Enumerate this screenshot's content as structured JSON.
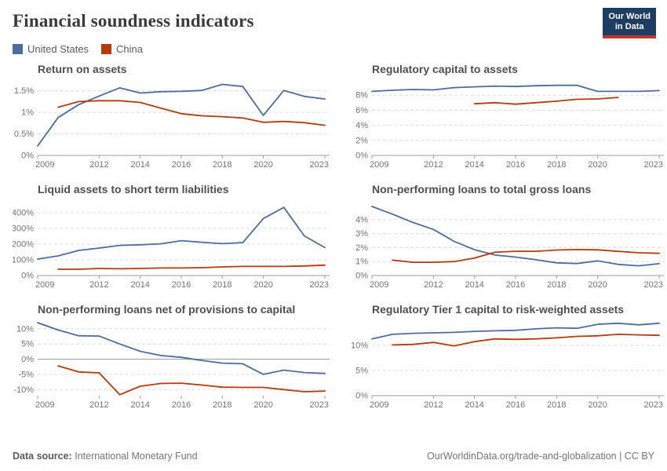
{
  "page": {
    "title": "Financial soundness indicators",
    "logo": {
      "line1": "Our World",
      "line2": "in Data"
    },
    "footer": {
      "source_label": "Data source:",
      "source_value": "International Monetary Fund",
      "rights": "OurWorldinData.org/trade-and-globalization | CC BY"
    }
  },
  "colors": {
    "united_states": "#4C6D9F",
    "china": "#B73A0D",
    "gridline": "#dcdcdc",
    "axis": "#9e9e9e",
    "tick_text": "#737373"
  },
  "legend": [
    {
      "label": "United States",
      "color": "#4C6D9F"
    },
    {
      "label": "China",
      "color": "#B73A0D"
    }
  ],
  "chart_data": [
    {
      "type": "line",
      "title": "Return on assets",
      "unit": "%",
      "xlim": [
        2009,
        2023
      ],
      "xticks": [
        2009,
        2012,
        2014,
        2016,
        2018,
        2020,
        2023
      ],
      "ylim": [
        0,
        1.75
      ],
      "yticks": [
        0,
        0.5,
        1,
        1.5
      ],
      "ytick_labels": [
        "0%",
        "0.5%",
        "1%",
        "1.5%"
      ],
      "series": [
        {
          "name": "United States",
          "color": "#4C6D9F",
          "points": [
            [
              2009,
              0.22
            ],
            [
              2010,
              0.88
            ],
            [
              2011,
              1.18
            ],
            [
              2012,
              1.38
            ],
            [
              2013,
              1.57
            ],
            [
              2014,
              1.45
            ],
            [
              2015,
              1.48
            ],
            [
              2016,
              1.49
            ],
            [
              2017,
              1.51
            ],
            [
              2018,
              1.65
            ],
            [
              2019,
              1.6
            ],
            [
              2020,
              0.93
            ],
            [
              2021,
              1.51
            ],
            [
              2022,
              1.37
            ],
            [
              2023,
              1.31
            ]
          ]
        },
        {
          "name": "China",
          "color": "#B73A0D",
          "points": [
            [
              2010,
              1.12
            ],
            [
              2011,
              1.25
            ],
            [
              2012,
              1.27
            ],
            [
              2013,
              1.27
            ],
            [
              2014,
              1.23
            ],
            [
              2015,
              1.1
            ],
            [
              2016,
              0.97
            ],
            [
              2017,
              0.92
            ],
            [
              2018,
              0.9
            ],
            [
              2019,
              0.87
            ],
            [
              2020,
              0.77
            ],
            [
              2021,
              0.79
            ],
            [
              2022,
              0.76
            ],
            [
              2023,
              0.7
            ]
          ]
        }
      ]
    },
    {
      "type": "line",
      "title": "Regulatory capital to assets",
      "unit": "%",
      "xlim": [
        2009,
        2023
      ],
      "xticks": [
        2009,
        2012,
        2014,
        2016,
        2018,
        2020,
        2023
      ],
      "ylim": [
        0,
        10
      ],
      "yticks": [
        0,
        2,
        4,
        6,
        8
      ],
      "ytick_labels": [
        "0%",
        "2%",
        "4%",
        "6%",
        "8%"
      ],
      "series": [
        {
          "name": "United States",
          "color": "#4C6D9F",
          "points": [
            [
              2009,
              8.5
            ],
            [
              2010,
              8.65
            ],
            [
              2011,
              8.75
            ],
            [
              2012,
              8.7
            ],
            [
              2013,
              9.0
            ],
            [
              2014,
              9.1
            ],
            [
              2015,
              9.2
            ],
            [
              2016,
              9.15
            ],
            [
              2017,
              9.25
            ],
            [
              2018,
              9.3
            ],
            [
              2019,
              9.3
            ],
            [
              2020,
              8.5
            ],
            [
              2021,
              8.5
            ],
            [
              2022,
              8.5
            ],
            [
              2023,
              8.6
            ]
          ]
        },
        {
          "name": "China",
          "color": "#B73A0D",
          "points": [
            [
              2014,
              6.85
            ],
            [
              2015,
              7.0
            ],
            [
              2016,
              6.8
            ],
            [
              2017,
              7.0
            ],
            [
              2018,
              7.2
            ],
            [
              2019,
              7.45
            ],
            [
              2020,
              7.5
            ],
            [
              2021,
              7.7
            ]
          ]
        }
      ]
    },
    {
      "type": "line",
      "title": "Liquid assets to short term liabilities",
      "unit": "%",
      "xlim": [
        2009,
        2023
      ],
      "xticks": [
        2009,
        2012,
        2014,
        2016,
        2018,
        2020,
        2023
      ],
      "ylim": [
        0,
        480
      ],
      "yticks": [
        0,
        100,
        200,
        300,
        400
      ],
      "ytick_labels": [
        "0%",
        "100%",
        "200%",
        "300%",
        "400%"
      ],
      "series": [
        {
          "name": "United States",
          "color": "#4C6D9F",
          "points": [
            [
              2009,
              105
            ],
            [
              2010,
              125
            ],
            [
              2011,
              160
            ],
            [
              2012,
              175
            ],
            [
              2013,
              192
            ],
            [
              2014,
              196
            ],
            [
              2015,
              202
            ],
            [
              2016,
              222
            ],
            [
              2017,
              212
            ],
            [
              2018,
              203
            ],
            [
              2019,
              210
            ],
            [
              2020,
              363
            ],
            [
              2021,
              434
            ],
            [
              2022,
              252
            ],
            [
              2023,
              178
            ]
          ]
        },
        {
          "name": "China",
          "color": "#B73A0D",
          "points": [
            [
              2010,
              40
            ],
            [
              2011,
              40
            ],
            [
              2012,
              45
            ],
            [
              2013,
              43
            ],
            [
              2014,
              45
            ],
            [
              2015,
              48
            ],
            [
              2016,
              48
            ],
            [
              2017,
              50
            ],
            [
              2018,
              55
            ],
            [
              2019,
              58
            ],
            [
              2020,
              58
            ],
            [
              2021,
              58
            ],
            [
              2022,
              61
            ],
            [
              2023,
              66
            ]
          ]
        }
      ]
    },
    {
      "type": "line",
      "title": "Non-performing loans to total gross loans",
      "unit": "%",
      "xlim": [
        2009,
        2023
      ],
      "xticks": [
        2009,
        2012,
        2014,
        2016,
        2018,
        2020,
        2023
      ],
      "ylim": [
        0,
        5.4
      ],
      "yticks": [
        0,
        1,
        2,
        3,
        4
      ],
      "ytick_labels": [
        "0%",
        "1%",
        "2%",
        "3%",
        "4%"
      ],
      "series": [
        {
          "name": "United States",
          "color": "#4C6D9F",
          "points": [
            [
              2009,
              4.95
            ],
            [
              2010,
              4.4
            ],
            [
              2011,
              3.8
            ],
            [
              2012,
              3.3
            ],
            [
              2013,
              2.45
            ],
            [
              2014,
              1.85
            ],
            [
              2015,
              1.47
            ],
            [
              2016,
              1.32
            ],
            [
              2017,
              1.13
            ],
            [
              2018,
              0.91
            ],
            [
              2019,
              0.86
            ],
            [
              2020,
              1.05
            ],
            [
              2021,
              0.8
            ],
            [
              2022,
              0.7
            ],
            [
              2023,
              0.85
            ]
          ]
        },
        {
          "name": "China",
          "color": "#B73A0D",
          "points": [
            [
              2010,
              1.1
            ],
            [
              2011,
              0.95
            ],
            [
              2012,
              0.95
            ],
            [
              2013,
              1.0
            ],
            [
              2014,
              1.25
            ],
            [
              2015,
              1.67
            ],
            [
              2016,
              1.74
            ],
            [
              2017,
              1.74
            ],
            [
              2018,
              1.83
            ],
            [
              2019,
              1.86
            ],
            [
              2020,
              1.84
            ],
            [
              2021,
              1.73
            ],
            [
              2022,
              1.63
            ],
            [
              2023,
              1.59
            ]
          ]
        }
      ]
    },
    {
      "type": "line",
      "title": "Non-performing loans net of provisions to capital",
      "unit": "%",
      "xlim": [
        2009,
        2023
      ],
      "xticks": [
        2009,
        2012,
        2014,
        2016,
        2018,
        2020,
        2023
      ],
      "ylim": [
        -12,
        12.8
      ],
      "yticks": [
        -10,
        -5,
        0,
        5,
        10
      ],
      "ytick_labels": [
        "-10%",
        "-5%",
        "0%",
        "5%",
        "10%"
      ],
      "series": [
        {
          "name": "United States",
          "color": "#4C6D9F",
          "points": [
            [
              2009,
              12.0
            ],
            [
              2010,
              9.6
            ],
            [
              2011,
              7.7
            ],
            [
              2012,
              7.6
            ],
            [
              2013,
              5.0
            ],
            [
              2014,
              2.6
            ],
            [
              2015,
              1.2
            ],
            [
              2016,
              0.6
            ],
            [
              2017,
              -0.4
            ],
            [
              2018,
              -1.3
            ],
            [
              2019,
              -1.5
            ],
            [
              2020,
              -5.0
            ],
            [
              2021,
              -3.6
            ],
            [
              2022,
              -4.4
            ],
            [
              2023,
              -4.7
            ]
          ]
        },
        {
          "name": "China",
          "color": "#B73A0D",
          "points": [
            [
              2010,
              -2.2
            ],
            [
              2011,
              -4.2
            ],
            [
              2012,
              -4.5
            ],
            [
              2013,
              -11.7
            ],
            [
              2014,
              -8.9
            ],
            [
              2015,
              -8.0
            ],
            [
              2016,
              -7.9
            ],
            [
              2017,
              -8.5
            ],
            [
              2018,
              -9.2
            ],
            [
              2019,
              -9.3
            ],
            [
              2020,
              -9.3
            ],
            [
              2021,
              -10.0
            ],
            [
              2022,
              -10.7
            ],
            [
              2023,
              -10.5
            ]
          ]
        }
      ]
    },
    {
      "type": "line",
      "title": "Regulatory Tier 1 capital to risk-weighted assets",
      "unit": "%",
      "xlim": [
        2009,
        2023
      ],
      "xticks": [
        2009,
        2012,
        2014,
        2016,
        2018,
        2020,
        2023
      ],
      "ylim": [
        0,
        15
      ],
      "yticks": [
        0,
        5,
        10
      ],
      "ytick_labels": [
        "0%",
        "5%",
        "10%"
      ],
      "series": [
        {
          "name": "United States",
          "color": "#4C6D9F",
          "points": [
            [
              2009,
              11.3
            ],
            [
              2010,
              12.2
            ],
            [
              2011,
              12.4
            ],
            [
              2012,
              12.5
            ],
            [
              2013,
              12.6
            ],
            [
              2014,
              12.8
            ],
            [
              2015,
              12.9
            ],
            [
              2016,
              13.0
            ],
            [
              2017,
              13.3
            ],
            [
              2018,
              13.5
            ],
            [
              2019,
              13.4
            ],
            [
              2020,
              14.2
            ],
            [
              2021,
              14.4
            ],
            [
              2022,
              14.1
            ],
            [
              2023,
              14.4
            ]
          ]
        },
        {
          "name": "China",
          "color": "#B73A0D",
          "points": [
            [
              2010,
              10.1
            ],
            [
              2011,
              10.2
            ],
            [
              2012,
              10.6
            ],
            [
              2013,
              9.9
            ],
            [
              2014,
              10.75
            ],
            [
              2015,
              11.3
            ],
            [
              2016,
              11.2
            ],
            [
              2017,
              11.3
            ],
            [
              2018,
              11.5
            ],
            [
              2019,
              11.8
            ],
            [
              2020,
              11.9
            ],
            [
              2021,
              12.2
            ],
            [
              2022,
              12.1
            ],
            [
              2023,
              12.0
            ]
          ]
        }
      ]
    }
  ]
}
